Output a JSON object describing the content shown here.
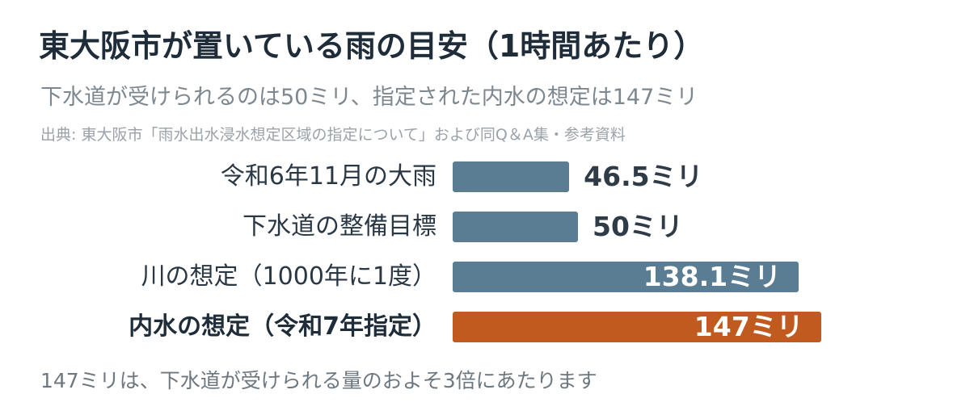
{
  "header": {
    "title": "東大阪市が置いている雨の目安（1時間あたり）",
    "subtitle": "下水道が受けられるのは50ミリ、指定された内水の想定は147ミリ",
    "source": "出典: 東大阪市「雨水出水浸水想定区域の指定について」および同Q＆A集・参考資料"
  },
  "chart_data": {
    "type": "bar",
    "orientation": "horizontal",
    "categories": [
      "令和6年11月の大雨",
      "下水道の整備目標",
      "川の想定（1000年に1度）",
      "内水の想定（令和7年指定）"
    ],
    "values": [
      46.5,
      50,
      138.1,
      147
    ],
    "value_labels": [
      "46.5ミリ",
      "50ミリ",
      "138.1ミリ",
      "147ミリ"
    ],
    "highlight_index": 3,
    "colors": {
      "default": "#5b7d94",
      "highlight": "#c15a1f"
    },
    "xlim": [
      0,
      150
    ],
    "grid": false,
    "legend": "none"
  },
  "footnote": "147ミリは、下水道が受けられる量のおよそ3倍にあたります"
}
